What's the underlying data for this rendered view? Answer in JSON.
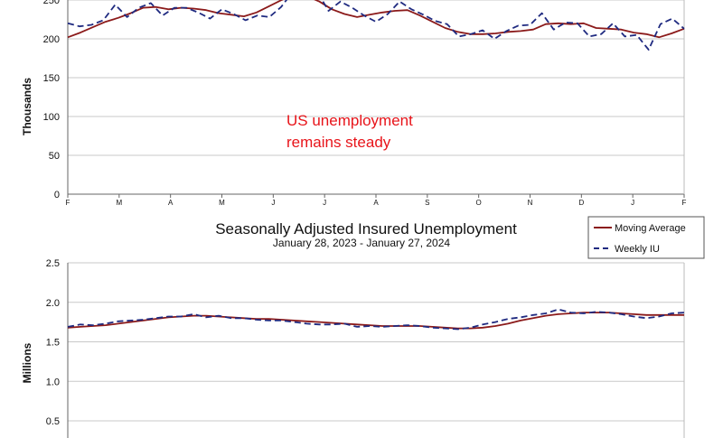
{
  "chart_data": [
    {
      "type": "line",
      "ylabel": "Thousands",
      "ylim": [
        0,
        300
      ],
      "yticks": [
        0,
        50,
        100,
        150,
        200,
        250
      ],
      "month_ticks": [
        "F",
        "M",
        "A",
        "M",
        "J",
        "J",
        "A",
        "S",
        "O",
        "N",
        "D",
        "J",
        "F"
      ],
      "annotation": [
        "US unemployment",
        "remains steady"
      ],
      "grid": true,
      "series": [
        {
          "name": "Moving Average",
          "color": "#8b1a1a",
          "style": "solid",
          "values": [
            202,
            208,
            215,
            222,
            227,
            233,
            240,
            241,
            238,
            240,
            239,
            237,
            233,
            231,
            229,
            234,
            242,
            250,
            257,
            255,
            248,
            238,
            232,
            228,
            231,
            234,
            236,
            237,
            230,
            222,
            214,
            209,
            206,
            206,
            207,
            209,
            210,
            212,
            219,
            220,
            219,
            220,
            214,
            213,
            212,
            208,
            206,
            202,
            207,
            213
          ]
        },
        {
          "name": "Weekly IU",
          "color": "#1f2a80",
          "style": "dashed",
          "values": [
            220,
            216,
            218,
            224,
            244,
            228,
            240,
            246,
            230,
            240,
            240,
            234,
            226,
            238,
            232,
            224,
            230,
            228,
            241,
            261,
            263,
            262,
            236,
            248,
            240,
            230,
            222,
            232,
            248,
            238,
            231,
            223,
            219,
            203,
            206,
            211,
            200,
            210,
            217,
            218,
            233,
            212,
            221,
            220,
            203,
            206,
            220,
            203,
            205,
            186,
            219,
            226,
            213
          ]
        }
      ]
    },
    {
      "type": "line",
      "title": "Seasonally Adjusted Insured Unemployment",
      "subtitle": "January 28, 2023 - January 27, 2024",
      "ylabel": "Millions",
      "ylim": [
        0.5,
        2.5
      ],
      "yticks": [
        0.5,
        1.0,
        1.5,
        2.0,
        2.5
      ],
      "ytick_labels": [
        "0.5",
        "1.0",
        "1.5",
        "2.0",
        "2.5"
      ],
      "legend": "top-right",
      "grid": true,
      "series": [
        {
          "name": "Moving Average",
          "color": "#8b1a1a",
          "style": "solid",
          "values": [
            1.68,
            1.69,
            1.7,
            1.71,
            1.73,
            1.75,
            1.77,
            1.79,
            1.81,
            1.82,
            1.83,
            1.83,
            1.82,
            1.81,
            1.8,
            1.79,
            1.79,
            1.78,
            1.77,
            1.76,
            1.75,
            1.74,
            1.73,
            1.72,
            1.71,
            1.7,
            1.7,
            1.7,
            1.7,
            1.69,
            1.68,
            1.67,
            1.67,
            1.68,
            1.7,
            1.73,
            1.77,
            1.8,
            1.83,
            1.85,
            1.86,
            1.87,
            1.87,
            1.87,
            1.86,
            1.85,
            1.84,
            1.84,
            1.84,
            1.84
          ]
        },
        {
          "name": "Weekly IU",
          "color": "#1f2a80",
          "style": "dashed",
          "values": [
            1.69,
            1.72,
            1.71,
            1.73,
            1.76,
            1.77,
            1.78,
            1.8,
            1.82,
            1.82,
            1.85,
            1.81,
            1.83,
            1.8,
            1.8,
            1.78,
            1.77,
            1.77,
            1.75,
            1.73,
            1.72,
            1.72,
            1.73,
            1.69,
            1.7,
            1.69,
            1.7,
            1.71,
            1.7,
            1.68,
            1.67,
            1.66,
            1.68,
            1.72,
            1.75,
            1.79,
            1.81,
            1.84,
            1.86,
            1.91,
            1.87,
            1.86,
            1.88,
            1.87,
            1.85,
            1.82,
            1.8,
            1.82,
            1.86,
            1.87
          ]
        }
      ]
    }
  ]
}
